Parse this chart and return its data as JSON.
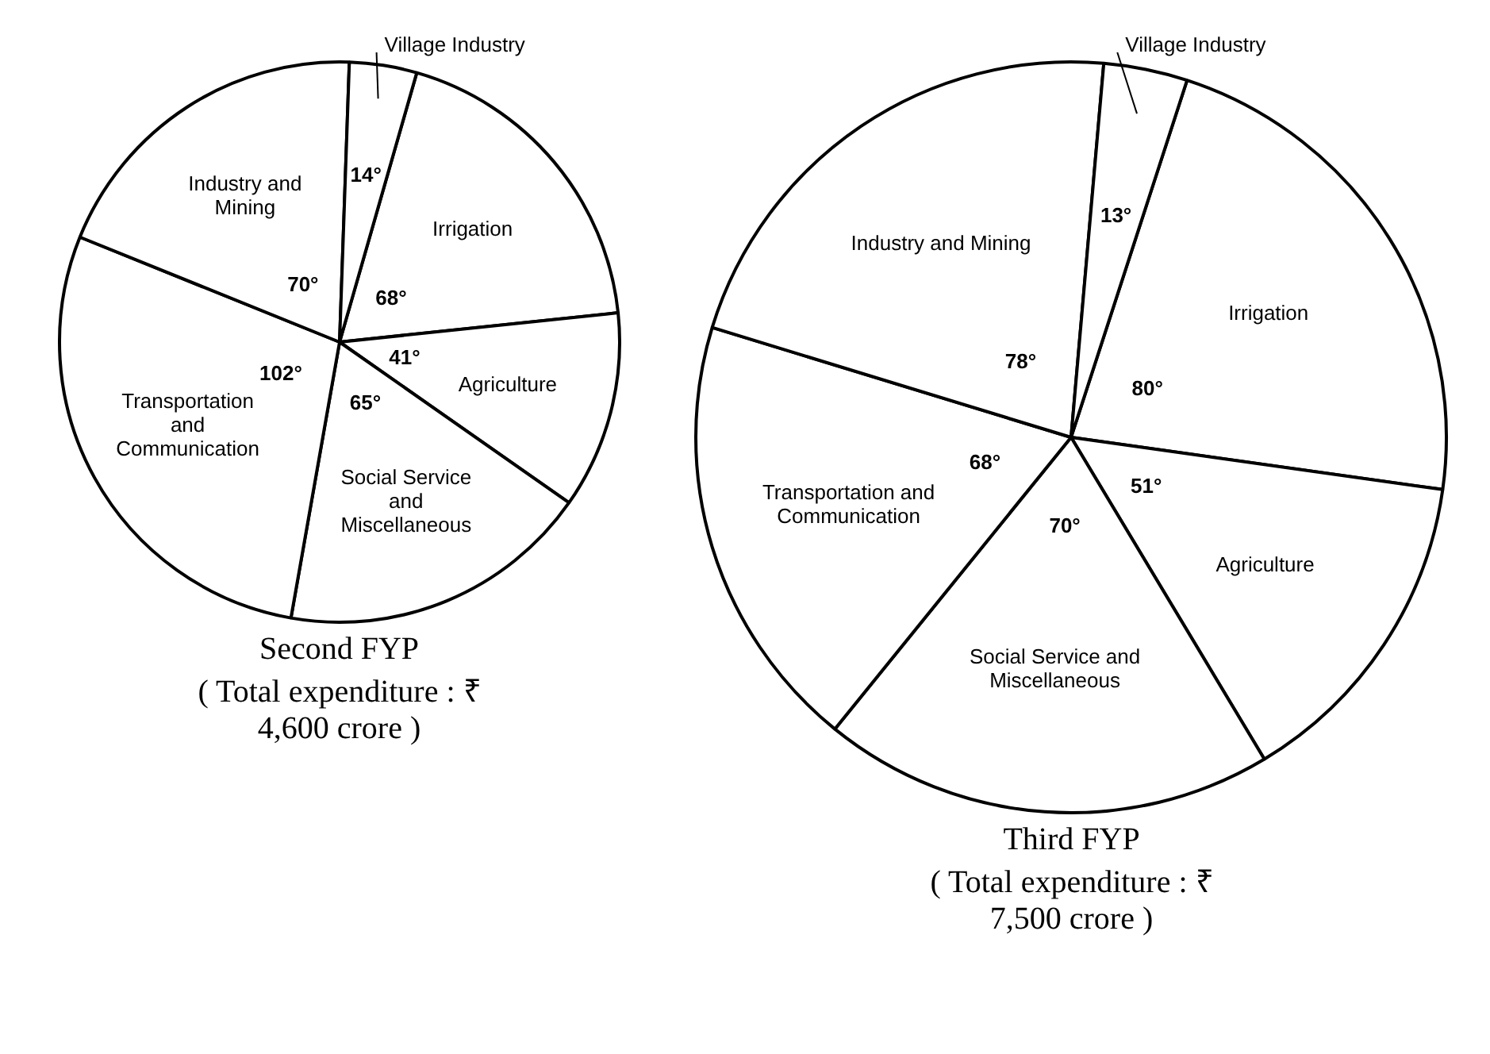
{
  "chart_data": [
    {
      "type": "pie",
      "title": "Second FYP",
      "subtitle": "( Total expenditure : ₹ 4,600 crore )",
      "categories": [
        "Irrigation",
        "Agriculture",
        "Social Service and Miscellaneous",
        "Transportation and Communication",
        "Industry and Mining",
        "Village Industry"
      ],
      "values": [
        68,
        41,
        65,
        102,
        70,
        14
      ],
      "value_labels": [
        "68°",
        "41°",
        "65°",
        "102°",
        "70°",
        "14°"
      ],
      "colors": [
        "#ffffff",
        "#ffffff",
        "#ffffff",
        "#ffffff",
        "#ffffff",
        "#ffffff"
      ],
      "legend": false
    },
    {
      "type": "pie",
      "title": "Third FYP",
      "subtitle": "( Total expenditure : ₹ 7,500 crore )",
      "categories": [
        "Irrigation",
        "Agriculture",
        "Social Service and Miscellaneous",
        "Transportation and Communication",
        "Industry and Mining",
        "Village Industry"
      ],
      "values": [
        80,
        51,
        70,
        68,
        78,
        13
      ],
      "value_labels": [
        "80°",
        "51°",
        "70°",
        "68°",
        "78°",
        "13°"
      ],
      "colors": [
        "#ffffff",
        "#ffffff",
        "#ffffff",
        "#ffffff",
        "#ffffff",
        "#ffffff"
      ],
      "legend": false
    }
  ]
}
